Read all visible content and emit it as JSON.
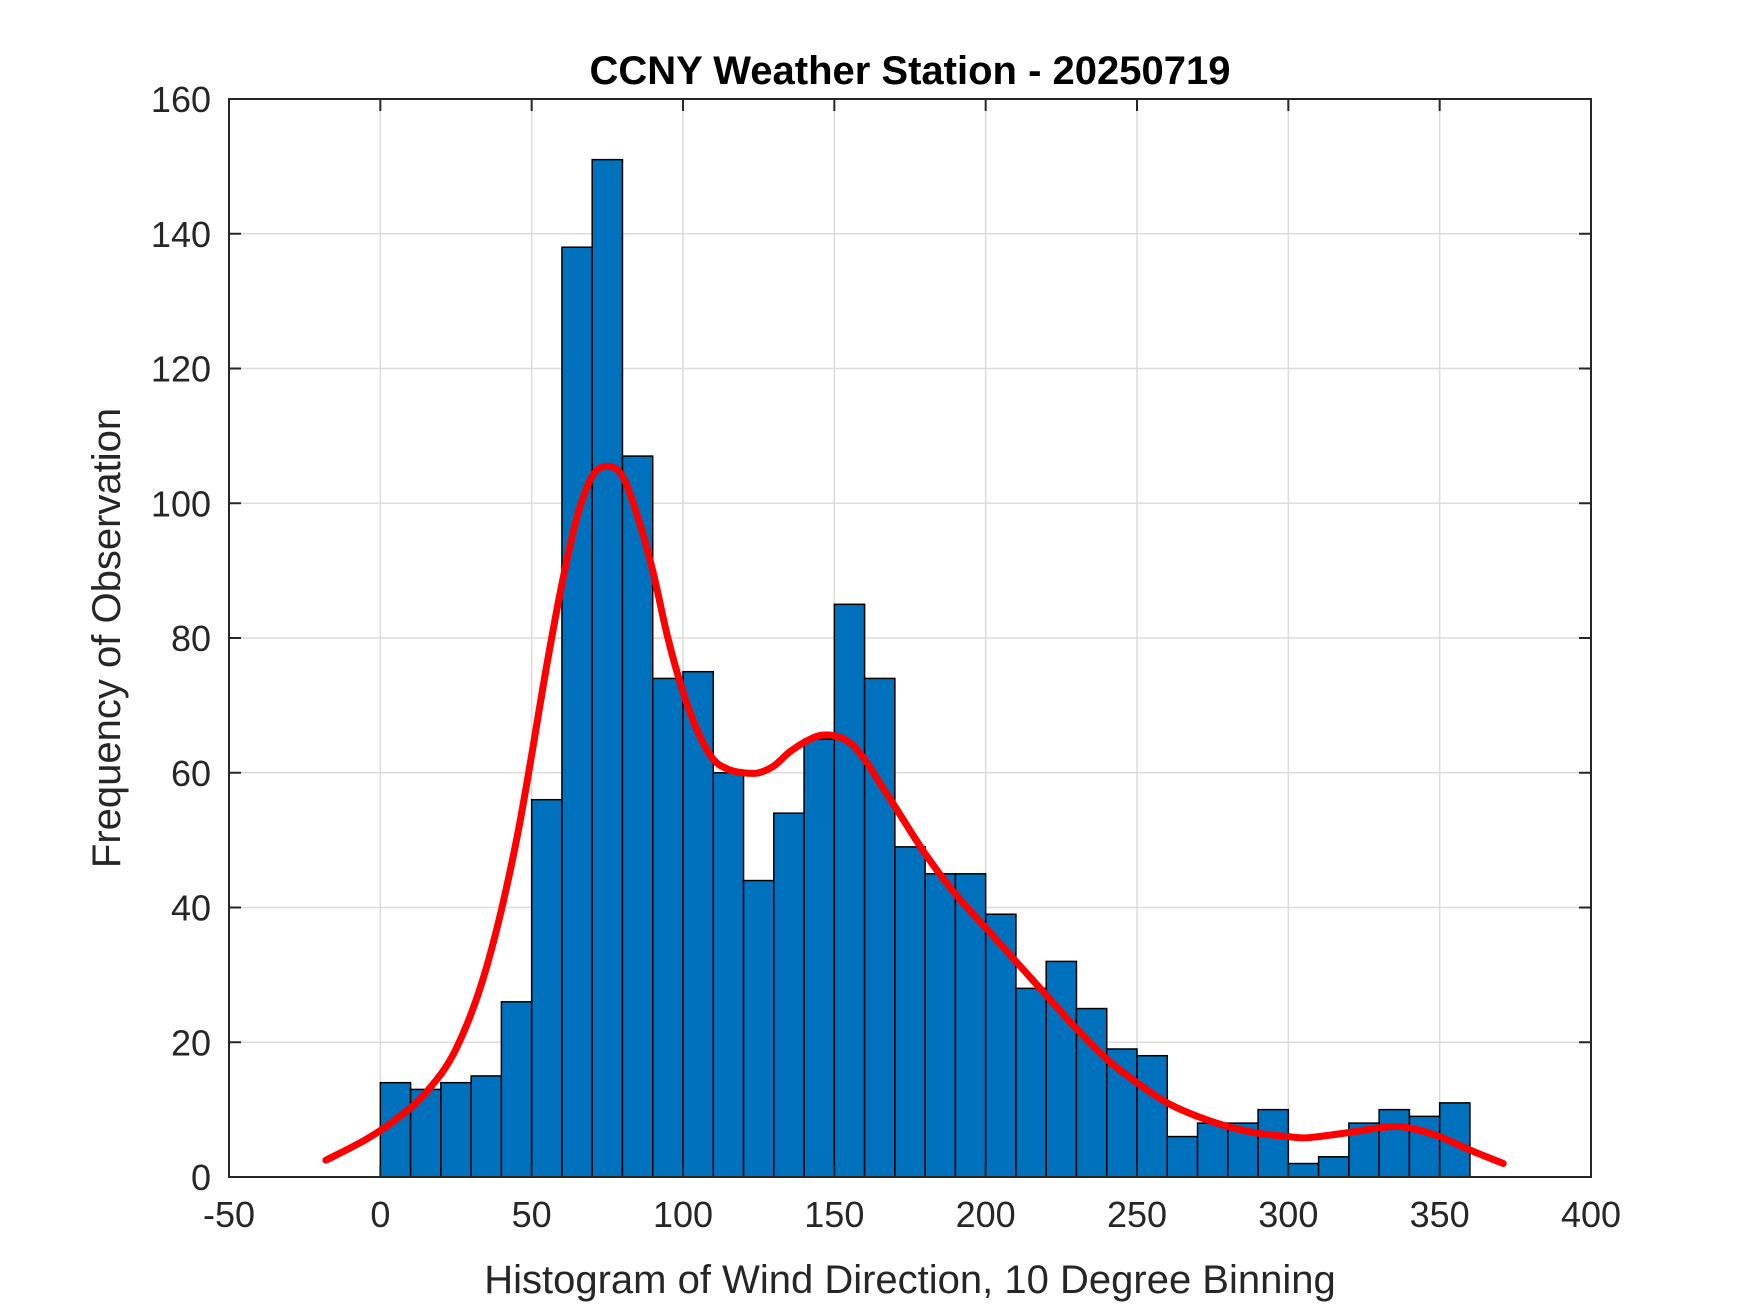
{
  "chart_data": {
    "type": "bar",
    "title": "CCNY Weather Station - 20250719",
    "xlabel": "Histogram of Wind Direction, 10 Degree Binning",
    "ylabel": "Frequency of Observation",
    "xlim": [
      -50,
      400
    ],
    "ylim": [
      0,
      160
    ],
    "x_ticks": [
      -50,
      0,
      50,
      100,
      150,
      200,
      250,
      300,
      350,
      400
    ],
    "x_tick_labels": [
      "-50",
      "0",
      "50",
      "100",
      "150",
      "200",
      "250",
      "300",
      "350",
      "400"
    ],
    "y_ticks": [
      0,
      20,
      40,
      60,
      80,
      100,
      120,
      140,
      160
    ],
    "y_tick_labels": [
      "0",
      "20",
      "40",
      "60",
      "80",
      "100",
      "120",
      "140",
      "160"
    ],
    "grid": true,
    "bin_width": 10,
    "bin_edges": [
      0,
      10,
      20,
      30,
      40,
      50,
      60,
      70,
      80,
      90,
      100,
      110,
      120,
      130,
      140,
      150,
      160,
      170,
      180,
      190,
      200,
      210,
      220,
      230,
      240,
      250,
      260,
      270,
      280,
      290,
      300,
      310,
      320,
      330,
      340,
      350,
      360
    ],
    "values": [
      14,
      13,
      14,
      15,
      26,
      56,
      138,
      151,
      107,
      74,
      75,
      60,
      44,
      54,
      65,
      85,
      74,
      49,
      45,
      45,
      39,
      28,
      32,
      25,
      19,
      18,
      6,
      8,
      8,
      10,
      2,
      3,
      8,
      10,
      9,
      11
    ],
    "bar_color": "#0072BD",
    "curve": {
      "color": "#FF0000",
      "x": [
        -18,
        -5,
        5,
        15,
        25,
        35,
        45,
        55,
        60,
        65,
        70,
        75,
        80,
        85,
        90,
        95,
        100,
        105,
        110,
        115,
        120,
        125,
        130,
        135,
        140,
        145,
        150,
        155,
        160,
        165,
        170,
        180,
        190,
        200,
        210,
        220,
        230,
        240,
        250,
        260,
        270,
        280,
        290,
        300,
        305,
        310,
        320,
        330,
        335,
        340,
        350,
        360,
        371
      ],
      "y": [
        2.5,
        5.5,
        8.5,
        12.5,
        19,
        31,
        50,
        76,
        88,
        98,
        104,
        105.5,
        104,
        98,
        90,
        80,
        72,
        66,
        62,
        60.5,
        60,
        60,
        61,
        63,
        64.5,
        65.5,
        65.5,
        64.5,
        62,
        58.5,
        55,
        48,
        42,
        37,
        32,
        27,
        22,
        17.5,
        14,
        11,
        9,
        7.5,
        6.5,
        6,
        5.8,
        6,
        6.6,
        7.3,
        7.5,
        7.3,
        6,
        4,
        2
      ]
    }
  }
}
